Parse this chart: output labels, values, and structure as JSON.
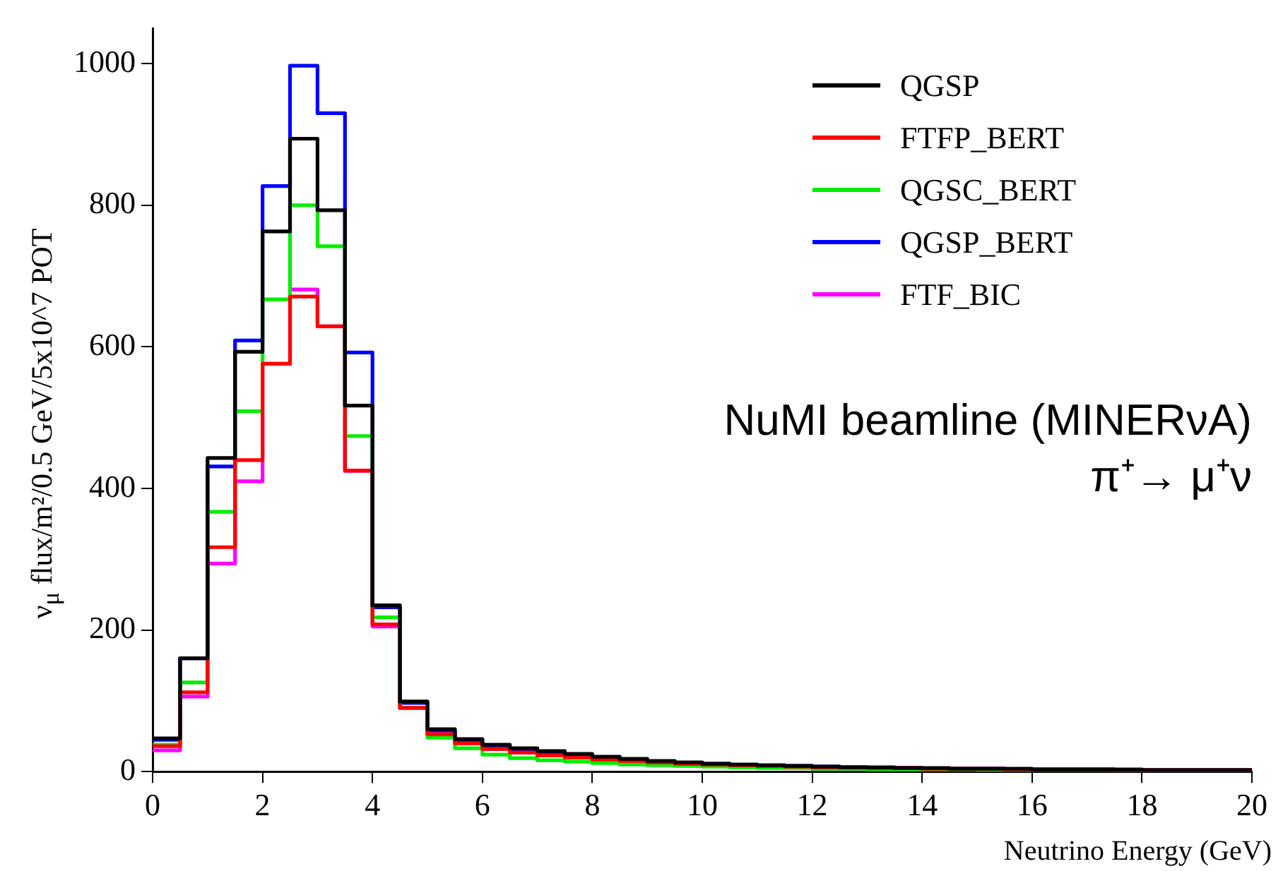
{
  "chart_data": {
    "type": "histogram",
    "xlabel": "Neutrino Energy (GeV)",
    "ylabel": "ν$_{μ}$ flux/m²/0.5 GeV/5x10^7 POT",
    "annotations": [
      "NuMI beamline (MINERνA)",
      "π⁺→ μ⁺ν"
    ],
    "bins": [
      0,
      0.5,
      1,
      1.5,
      2,
      2.5,
      3,
      3.5,
      4,
      4.5,
      5,
      5.5,
      6,
      6.5,
      7,
      7.5,
      8,
      8.5,
      9,
      9.5,
      10,
      10.5,
      11,
      11.5,
      12,
      12.5,
      13,
      13.5,
      14,
      14.5,
      15,
      15.5,
      16,
      16.5,
      17,
      17.5,
      18,
      18.5,
      19,
      19.5,
      20
    ],
    "xlim": [
      0,
      20
    ],
    "xticks": [
      0,
      2,
      4,
      6,
      8,
      10,
      12,
      14,
      16,
      18,
      20
    ],
    "ylim": [
      0,
      1050
    ],
    "yticks": [
      0,
      200,
      400,
      600,
      800,
      1000
    ],
    "legend": "top right",
    "grid": false,
    "series": [
      {
        "name": "QGSP",
        "color": "#000000",
        "values": [
          47,
          160,
          443,
          593,
          763,
          894,
          793,
          517,
          235,
          99,
          60,
          46,
          38,
          33,
          29,
          25,
          21,
          18,
          15,
          13,
          11,
          10,
          9,
          8,
          7,
          6,
          6,
          5,
          5,
          4,
          4,
          4,
          3,
          3,
          3,
          3,
          2,
          2,
          2,
          2
        ]
      },
      {
        "name": "FTFP_BERT",
        "color": "#ff0000",
        "values": [
          36,
          112,
          317,
          440,
          576,
          671,
          629,
          425,
          208,
          90,
          53,
          40,
          32,
          27,
          23,
          20,
          17,
          15,
          13,
          11,
          10,
          9,
          8,
          7,
          6,
          6,
          5,
          5,
          4,
          4,
          4,
          3,
          3,
          3,
          3,
          2,
          2,
          2,
          2,
          2
        ]
      },
      {
        "name": "QGSC_BERT",
        "color": "#00ee00",
        "values": [
          38,
          126,
          367,
          509,
          667,
          800,
          742,
          474,
          218,
          90,
          48,
          33,
          24,
          19,
          16,
          14,
          12,
          10,
          9,
          8,
          7,
          6,
          5,
          5,
          4,
          4,
          3,
          3,
          3,
          3,
          2,
          2,
          2,
          2,
          2,
          2,
          1,
          1,
          1,
          1
        ]
      },
      {
        "name": "QGSP_BERT",
        "color": "#0000ff",
        "values": [
          45,
          160,
          431,
          609,
          827,
          997,
          930,
          592,
          232,
          97,
          58,
          44,
          36,
          31,
          27,
          23,
          20,
          17,
          14,
          12,
          11,
          9,
          8,
          8,
          7,
          6,
          5,
          5,
          4,
          4,
          4,
          3,
          3,
          3,
          3,
          2,
          2,
          2,
          2,
          2
        ]
      },
      {
        "name": "FTF_BIC",
        "color": "#ff00ff",
        "values": [
          30,
          106,
          294,
          410,
          576,
          681,
          629,
          425,
          205,
          90,
          53,
          40,
          32,
          27,
          23,
          20,
          17,
          15,
          13,
          11,
          10,
          9,
          8,
          7,
          6,
          6,
          5,
          5,
          4,
          4,
          4,
          3,
          3,
          3,
          3,
          2,
          2,
          2,
          2,
          2
        ]
      }
    ]
  }
}
